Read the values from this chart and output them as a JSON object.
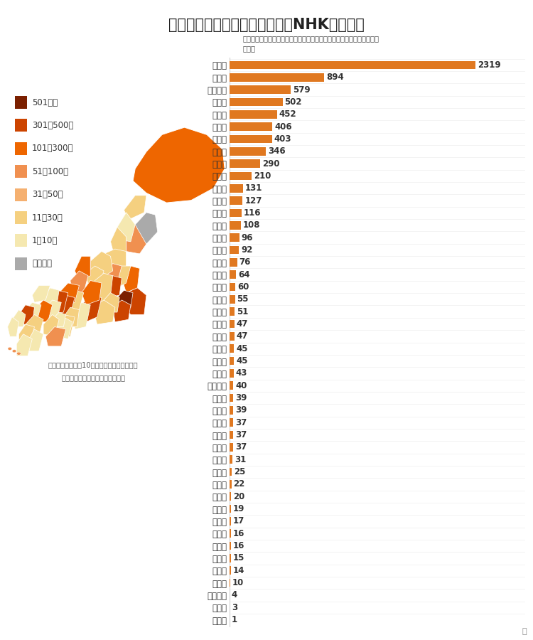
{
  "title": "都道府県別の感染者数（累計・NHKまとめ）",
  "subtitle": "下のグラフや数字をクリック・タップするとその都道府県の推移を見ら\nれます",
  "footnote1": "（４月１５日午前10時半までの情報を表示）",
  "footnote2": "地図：「国土数値情報」から作成",
  "background_color": "#ffffff",
  "bar_color": "#e07820",
  "label_color": "#333333",
  "value_color": "#333333",
  "categories": [
    "東京都",
    "大阪府",
    "神奈川県",
    "千葉県",
    "埼玉県",
    "福岡県",
    "兵庫県",
    "愛知県",
    "北海道",
    "京都府",
    "石川県",
    "岐阜県",
    "茨城県",
    "広島県",
    "群馬県",
    "福井県",
    "沖縄県",
    "宮城県",
    "高知県",
    "富山県",
    "滋賀県",
    "静岡県",
    "奈良県",
    "新潟県",
    "大分県",
    "山形県",
    "和歌山県",
    "福島県",
    "愛媛県",
    "栃木県",
    "山梨県",
    "長野県",
    "熊本県",
    "山口県",
    "青森県",
    "香川県",
    "三重県",
    "宮崎県",
    "秋田県",
    "岡山県",
    "佐賀県",
    "長崎県",
    "島根県",
    "鹿児島県",
    "徳島県",
    "鳥取県"
  ],
  "values": [
    2319,
    894,
    579,
    502,
    452,
    406,
    403,
    346,
    290,
    210,
    131,
    127,
    116,
    108,
    96,
    92,
    76,
    64,
    60,
    55,
    51,
    47,
    47,
    45,
    45,
    43,
    40,
    39,
    39,
    37,
    37,
    37,
    31,
    25,
    22,
    20,
    19,
    17,
    16,
    16,
    15,
    14,
    10,
    4,
    3,
    1
  ],
  "legend_items": [
    {
      "label": "501人～",
      "color": "#7b2000"
    },
    {
      "label": "301～500人",
      "color": "#cc4400"
    },
    {
      "label": "101～300人",
      "color": "#ee6600"
    },
    {
      "label": "51～100人",
      "color": "#f09050"
    },
    {
      "label": "31～50人",
      "color": "#f5b070"
    },
    {
      "label": "11～30人",
      "color": "#f5d080"
    },
    {
      "label": "1～10人",
      "color": "#f5e8b0"
    },
    {
      "label": "発表なし",
      "color": "#aaaaaa"
    }
  ],
  "title_fontsize": 15,
  "bar_label_fontsize": 8.5,
  "value_label_fontsize": 8.5,
  "legend_fontsize": 8.5
}
